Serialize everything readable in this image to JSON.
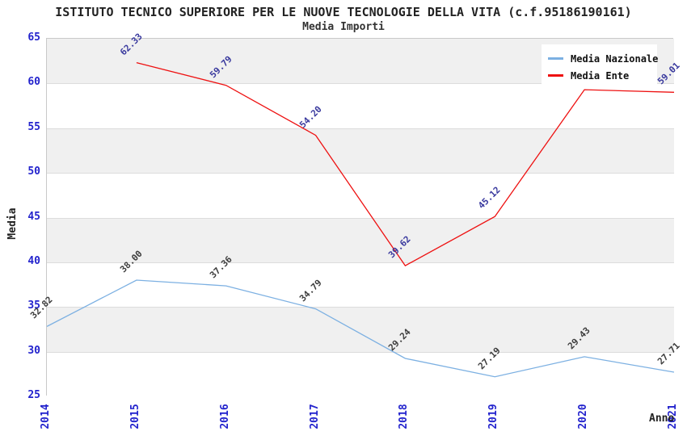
{
  "header": {
    "title": "ISTITUTO TECNICO SUPERIORE PER LE NUOVE TECNOLOGIE DELLA VITA (c.f.95186190161)",
    "subtitle": "Media Importi"
  },
  "axes": {
    "y_label": "Media",
    "x_label": "Anno",
    "y_ticks": [
      "65",
      "60",
      "55",
      "50",
      "45",
      "40",
      "35",
      "30",
      "25"
    ],
    "x_ticks": [
      "2014",
      "2015",
      "2016",
      "2017",
      "2018",
      "2019",
      "2020",
      "2021"
    ]
  },
  "legend": {
    "items": [
      {
        "label": "Media Nazionale",
        "color": "#7cb0e2"
      },
      {
        "label": "Media Ente",
        "color": "#ee1111"
      }
    ]
  },
  "colors": {
    "band_gray": "#f0f0f0",
    "band_white": "#ffffff",
    "gridline": "#dcdcdc",
    "tick_text": "#2323cd",
    "national_line": "#7cb0e2",
    "national_label_text": "#3c3c3c",
    "ente_line": "#ee1111",
    "ente_label_text": "#39399e"
  },
  "chart_data": {
    "type": "line",
    "title": "ISTITUTO TECNICO SUPERIORE PER LE NUOVE TECNOLOGIE DELLA VITA (c.f.95186190161)",
    "subtitle": "Media Importi",
    "xlabel": "Anno",
    "ylabel": "Media",
    "x": [
      "2014",
      "2015",
      "2016",
      "2017",
      "2018",
      "2019",
      "2020",
      "2021"
    ],
    "ylim": [
      25,
      65
    ],
    "ytick_step": 5,
    "grid": "horizontal-bands-alternating",
    "legend_position": "top-right",
    "series": [
      {
        "name": "Media Nazionale",
        "color": "#7cb0e2",
        "label_color": "#3c3c3c",
        "values": [
          32.82,
          38.0,
          37.36,
          34.79,
          29.24,
          27.19,
          29.43,
          27.71
        ],
        "point_labels": [
          "32.82",
          "38.00",
          "37.36",
          "34.79",
          "29.24",
          "27.19",
          "29.43",
          "27.71"
        ]
      },
      {
        "name": "Media Ente",
        "color": "#ee1111",
        "label_color": "#39399e",
        "values": [
          null,
          62.33,
          59.79,
          54.2,
          39.62,
          45.12,
          59.3,
          59.01
        ],
        "point_labels": [
          "",
          "62.33",
          "59.79",
          "54.20",
          "39.62",
          "45.12",
          "59.30",
          "59.01"
        ],
        "note_2020_label_occluded_by_legend": true
      }
    ]
  }
}
